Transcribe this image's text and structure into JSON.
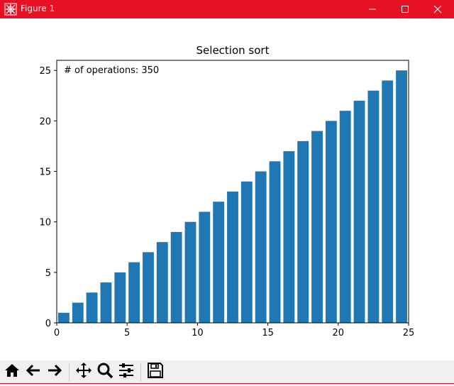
{
  "window": {
    "title": "Figure 1",
    "controls": [
      "minimize-icon",
      "maximize-icon",
      "close-icon"
    ],
    "title_bar_color": "#e81123"
  },
  "chart_data": {
    "type": "bar",
    "title": "Selection sort",
    "annotation": "# of operations: 350",
    "x": [
      0,
      1,
      2,
      3,
      4,
      5,
      6,
      7,
      8,
      9,
      10,
      11,
      12,
      13,
      14,
      15,
      16,
      17,
      18,
      19,
      20,
      21,
      22,
      23,
      24
    ],
    "values": [
      1,
      2,
      3,
      4,
      5,
      6,
      7,
      8,
      9,
      10,
      11,
      12,
      13,
      14,
      15,
      16,
      17,
      18,
      19,
      20,
      21,
      22,
      23,
      24,
      25
    ],
    "xlim": [
      0,
      25
    ],
    "ylim": [
      0,
      26
    ],
    "xticks": [
      0,
      5,
      10,
      15,
      20,
      25
    ],
    "yticks": [
      0,
      5,
      10,
      15,
      20,
      25
    ],
    "bar_color": "#1f77b4",
    "grid": false,
    "xlabel": "",
    "ylabel": ""
  },
  "toolbar": {
    "buttons": [
      "home-icon",
      "back-icon",
      "forward-icon",
      "pan-icon",
      "zoom-icon",
      "configure-subplots-icon",
      "save-icon"
    ]
  }
}
